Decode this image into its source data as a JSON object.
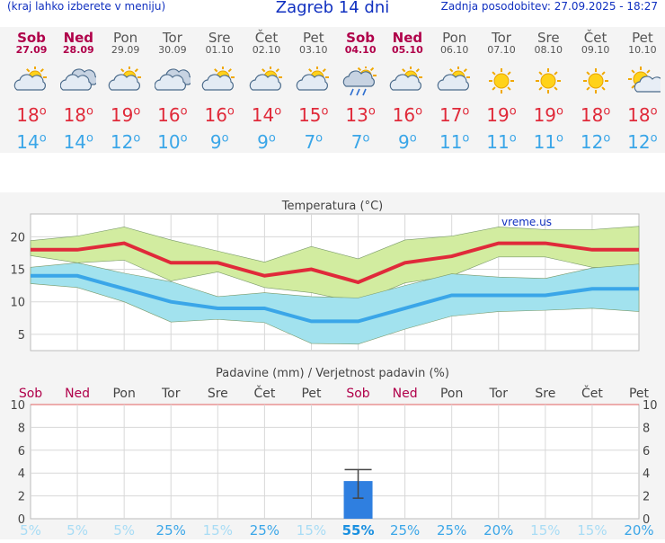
{
  "header": {
    "left": "(kraj lahko izberete v meniju)",
    "title": "Zagreb 14 dni",
    "updated": "Zadnja posodobitev: 27.09.2025 - 18:27"
  },
  "days": [
    {
      "name": "Sob",
      "date": "27.09",
      "weekend": true,
      "icon": "partly-cloudy-icon",
      "max": "18",
      "min": "14"
    },
    {
      "name": "Ned",
      "date": "28.09",
      "weekend": true,
      "icon": "cloudy-icon",
      "max": "18",
      "min": "14"
    },
    {
      "name": "Pon",
      "date": "29.09",
      "weekend": false,
      "icon": "partly-cloudy-icon",
      "max": "19",
      "min": "12"
    },
    {
      "name": "Tor",
      "date": "30.09",
      "weekend": false,
      "icon": "cloudy-icon",
      "max": "16",
      "min": "10"
    },
    {
      "name": "Sre",
      "date": "01.10",
      "weekend": false,
      "icon": "partly-cloudy-icon",
      "max": "16",
      "min": "9"
    },
    {
      "name": "Čet",
      "date": "02.10",
      "weekend": false,
      "icon": "partly-cloudy-icon",
      "max": "14",
      "min": "9"
    },
    {
      "name": "Pet",
      "date": "03.10",
      "weekend": false,
      "icon": "partly-cloudy-icon",
      "max": "15",
      "min": "7"
    },
    {
      "name": "Sob",
      "date": "04.10",
      "weekend": true,
      "icon": "rain-cloud-icon",
      "max": "13",
      "min": "7"
    },
    {
      "name": "Ned",
      "date": "05.10",
      "weekend": true,
      "icon": "partly-cloudy-icon",
      "max": "16",
      "min": "9"
    },
    {
      "name": "Pon",
      "date": "06.10",
      "weekend": false,
      "icon": "partly-cloudy-icon",
      "max": "17",
      "min": "11"
    },
    {
      "name": "Tor",
      "date": "07.10",
      "weekend": false,
      "icon": "sun-icon",
      "max": "19",
      "min": "11"
    },
    {
      "name": "Sre",
      "date": "08.10",
      "weekend": false,
      "icon": "sun-icon",
      "max": "19",
      "min": "11"
    },
    {
      "name": "Čet",
      "date": "09.10",
      "weekend": false,
      "icon": "sun-icon",
      "max": "18",
      "min": "12"
    },
    {
      "name": "Pet",
      "date": "10.10",
      "weekend": false,
      "icon": "mostly-sunny-icon",
      "max": "18",
      "min": "12"
    }
  ],
  "degree_symbol": "o",
  "colors": {
    "max": "#e02a3a",
    "min": "#3aa6e8",
    "weekend": "#b0004a",
    "bar": "#2f7fe0",
    "maxBand": "#d2eca0",
    "minBand": "#a2e2ee"
  },
  "chart_data": [
    {
      "type": "line",
      "title": "Temperatura (°C)",
      "watermark": "vreme.us",
      "categories": [
        "Sob",
        "Ned",
        "Pon",
        "Tor",
        "Sre",
        "Čet",
        "Pet",
        "Sob",
        "Ned",
        "Pon",
        "Tor",
        "Sre",
        "Čet",
        "Pet"
      ],
      "yticks": [
        5,
        10,
        15,
        20
      ],
      "ylim": [
        2.5,
        23.5
      ],
      "series": [
        {
          "values": [
            18,
            18,
            19,
            16,
            16,
            14,
            15,
            13,
            16,
            17,
            19,
            19,
            18,
            18
          ],
          "band_high": [
            19.4,
            20.1,
            21.5,
            19.5,
            17.8,
            16.1,
            18.5,
            16.6,
            19.5,
            20.1,
            21.5,
            21.1,
            21.1,
            21.6
          ],
          "band_low": [
            17.1,
            16.0,
            16.4,
            13.2,
            14.6,
            12.2,
            11.4,
            9.9,
            12.9,
            14.0,
            16.9,
            16.9,
            15.3,
            14.8
          ]
        },
        {
          "values": [
            14,
            14,
            12,
            10,
            9,
            9,
            7,
            7,
            9,
            11,
            11,
            11,
            12,
            12
          ],
          "band_high": [
            15.3,
            16.0,
            14.4,
            13.1,
            10.8,
            11.4,
            10.8,
            10.6,
            12.5,
            14.3,
            13.8,
            13.6,
            15.2,
            15.8
          ],
          "band_low": [
            12.8,
            12.2,
            10.0,
            6.9,
            7.3,
            6.8,
            3.6,
            3.5,
            5.8,
            7.8,
            8.5,
            8.7,
            9.0,
            8.5
          ]
        }
      ]
    },
    {
      "type": "bar",
      "title": "Padavine (mm) / Verjetnost padavin (%)",
      "categories": [
        "Sob",
        "Ned",
        "Pon",
        "Tor",
        "Sre",
        "Čet",
        "Pet",
        "Sob",
        "Ned",
        "Pon",
        "Tor",
        "Sre",
        "Čet",
        "Pet"
      ],
      "values": [
        0,
        0,
        0,
        0,
        0,
        0,
        0,
        3.3,
        0,
        0,
        0,
        0,
        0,
        0
      ],
      "error_high": [
        0,
        0,
        0,
        0,
        0,
        0,
        0,
        4.3,
        0,
        0,
        0,
        0,
        0,
        0
      ],
      "error_low": [
        0,
        0,
        0,
        0,
        0,
        0,
        0,
        1.8,
        0,
        0,
        0,
        0,
        0,
        0
      ],
      "probability": [
        "5%",
        "5%",
        "5%",
        "25%",
        "15%",
        "25%",
        "15%",
        "55%",
        "25%",
        "25%",
        "20%",
        "15%",
        "15%",
        "20%"
      ],
      "yticks": [
        0,
        2,
        4,
        6,
        8,
        10
      ],
      "ylim": [
        0,
        10
      ]
    }
  ]
}
